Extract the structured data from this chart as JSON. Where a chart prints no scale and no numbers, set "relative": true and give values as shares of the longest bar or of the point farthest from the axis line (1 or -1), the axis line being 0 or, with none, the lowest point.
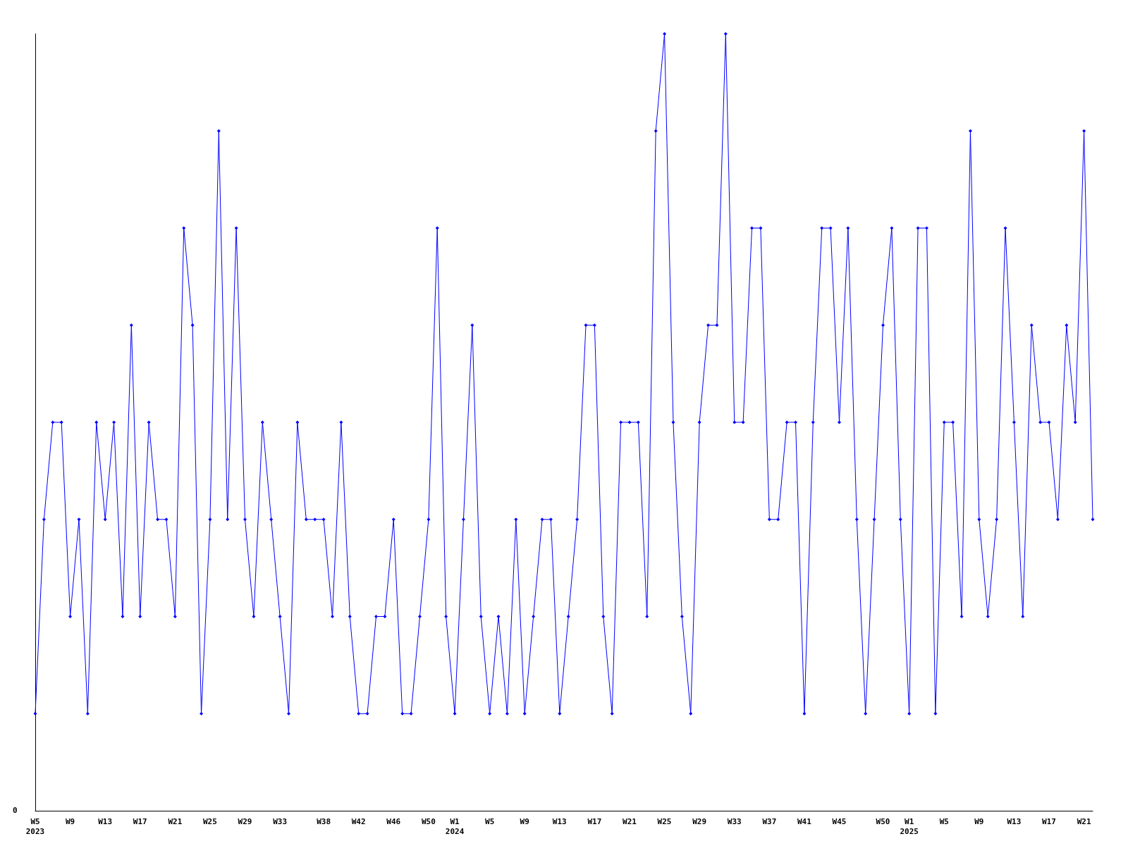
{
  "chart_data": {
    "type": "line",
    "relative": true,
    "marker": "diamond",
    "line_style": "solid",
    "grid": false,
    "annotations": [
      "0"
    ],
    "categories": [
      "W5\n2023",
      null,
      null,
      null,
      "W9",
      null,
      null,
      null,
      "W13",
      null,
      null,
      null,
      "W17",
      null,
      null,
      null,
      "W21",
      null,
      null,
      null,
      "W25",
      null,
      null,
      null,
      "W29",
      null,
      null,
      null,
      "W33",
      null,
      null,
      null,
      null,
      "W38",
      null,
      null,
      null,
      "W42",
      null,
      null,
      null,
      "W46",
      null,
      null,
      null,
      "W50",
      null,
      null,
      "W1\n2024",
      null,
      null,
      null,
      "W5",
      null,
      null,
      null,
      "W9",
      null,
      null,
      null,
      "W13",
      null,
      null,
      null,
      "W17",
      null,
      null,
      null,
      "W21",
      null,
      null,
      null,
      "W25",
      null,
      null,
      null,
      "W29",
      null,
      null,
      null,
      "W33",
      null,
      null,
      null,
      "W37",
      null,
      null,
      null,
      "W41",
      null,
      null,
      null,
      "W45",
      null,
      null,
      null,
      null,
      "W50",
      null,
      null,
      "W1\n2025",
      null,
      null,
      null,
      "W5",
      null,
      null,
      null,
      "W9",
      null,
      null,
      null,
      "W13",
      null,
      null,
      null,
      "W17",
      null,
      null,
      null,
      "W21",
      null
    ],
    "series": [
      {
        "color": "#0000ff",
        "values": [
          0.125,
          0.375,
          0.5,
          0.5,
          0.25,
          0.375,
          0.125,
          0.5,
          0.375,
          0.5,
          0.25,
          0.625,
          0.25,
          0.5,
          0.375,
          0.375,
          0.25,
          0.75,
          0.625,
          0.125,
          0.375,
          0.875,
          0.375,
          0.75,
          0.375,
          0.25,
          0.5,
          0.375,
          0.25,
          0.125,
          0.5,
          0.375,
          0.375,
          0.375,
          0.25,
          0.5,
          0.25,
          0.125,
          0.125,
          0.25,
          0.25,
          0.375,
          0.125,
          0.125,
          0.25,
          0.375,
          0.75,
          0.25,
          0.125,
          0.375,
          0.625,
          0.25,
          0.125,
          0.25,
          0.125,
          0.375,
          0.125,
          0.25,
          0.375,
          0.375,
          0.125,
          0.25,
          0.375,
          0.625,
          0.625,
          0.25,
          0.125,
          0.5,
          0.5,
          0.5,
          0.25,
          0.875,
          1,
          0.5,
          0.25,
          0.125,
          0.5,
          0.625,
          0.625,
          1,
          0.5,
          0.5,
          0.75,
          0.75,
          0.375,
          0.375,
          0.5,
          0.5,
          0.125,
          0.5,
          0.75,
          0.75,
          0.5,
          0.75,
          0.375,
          0.125,
          0.375,
          0.625,
          0.75,
          0.375,
          0.125,
          0.75,
          0.75,
          0.125,
          0.5,
          0.5,
          0.25,
          0.875,
          0.375,
          0.25,
          0.375,
          0.75,
          0.5,
          0.25,
          0.625,
          0.5,
          0.5,
          0.375,
          0.625,
          0.5,
          0.875,
          0.375
        ]
      }
    ]
  }
}
